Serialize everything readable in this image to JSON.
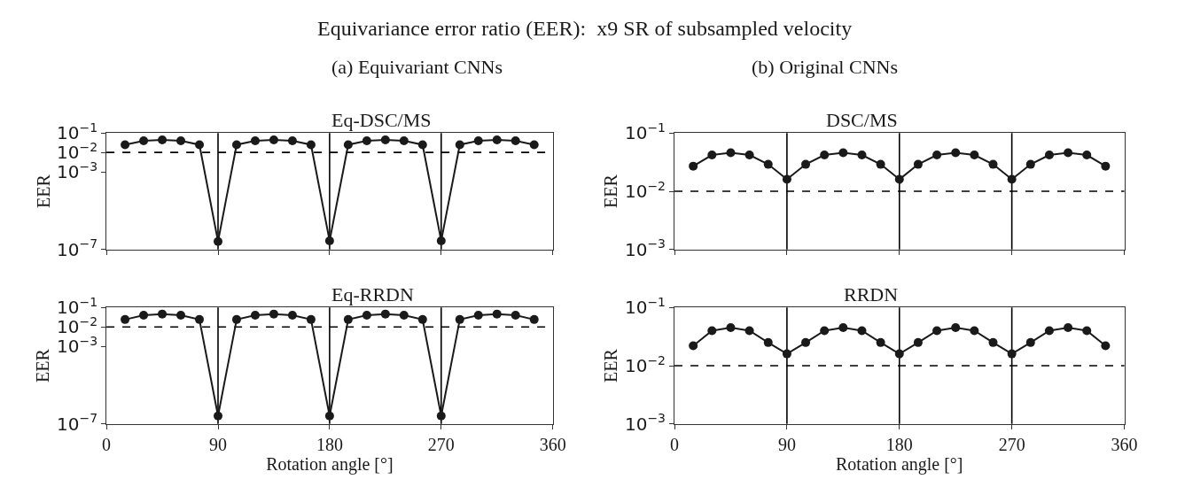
{
  "chart_data": [
    {
      "type": "line",
      "subtitle": "(a) Equivariant CNNs",
      "title": "Eq-DSC/MS",
      "ylabel": "EER",
      "annotations": [
        "Equivariance error ratio (EER):  x9 SR of subsampled velocity"
      ],
      "log": "y",
      "xlim": [
        0,
        360
      ],
      "xticks": [
        0,
        90,
        180,
        270,
        360
      ],
      "ylim": [
        1e-07,
        0.1
      ],
      "yticks": [
        {
          "value": 0.1,
          "label": "10$^{−1}$"
        },
        {
          "value": 0.01,
          "label": "10$^{−2}$"
        },
        {
          "value": 0.001,
          "label": "10$^{−3}$"
        },
        {
          "value": 1e-07,
          "label": "10$^{−7}$"
        }
      ],
      "tick_labels": "y",
      "marker": "circle",
      "line_style": "solid",
      "ref_lines": [
        {
          "axis": "x",
          "value": 90,
          "color": "#000000",
          "line_style": "solid"
        },
        {
          "axis": "x",
          "value": 180,
          "color": "#000000",
          "line_style": "solid"
        },
        {
          "axis": "x",
          "value": 270,
          "color": "#000000",
          "line_style": "solid"
        },
        {
          "axis": "y",
          "value": 0.01,
          "color": "#000000",
          "line_style": "dashed"
        }
      ],
      "x": [
        15,
        30,
        45,
        60,
        75,
        90,
        105,
        120,
        135,
        150,
        165,
        180,
        195,
        210,
        225,
        240,
        255,
        270,
        285,
        300,
        315,
        330,
        345
      ],
      "series": [
        {
          "color": "#1a1a1a",
          "values": [
            0.025,
            0.04,
            0.044,
            0.04,
            0.025,
            2.6e-07,
            0.025,
            0.04,
            0.044,
            0.04,
            0.025,
            2.8e-07,
            0.025,
            0.04,
            0.044,
            0.04,
            0.025,
            2.8e-07,
            0.025,
            0.04,
            0.044,
            0.04,
            0.025
          ]
        }
      ]
    },
    {
      "type": "line",
      "subtitle": "(b) Original CNNs",
      "title": "DSC/MS",
      "ylabel": "EER",
      "log": "y",
      "xlim": [
        0,
        360
      ],
      "xticks": [
        0,
        90,
        180,
        270,
        360
      ],
      "ylim": [
        0.001,
        0.1
      ],
      "yticks": [
        {
          "value": 0.1,
          "label": "10$^{−1}$"
        },
        {
          "value": 0.01,
          "label": "10$^{−2}$"
        },
        {
          "value": 0.001,
          "label": "10$^{−3}$"
        }
      ],
      "tick_labels": "y",
      "marker": "circle",
      "line_style": "solid",
      "ref_lines": [
        {
          "axis": "x",
          "value": 90,
          "color": "#000000",
          "line_style": "solid"
        },
        {
          "axis": "x",
          "value": 180,
          "color": "#000000",
          "line_style": "solid"
        },
        {
          "axis": "x",
          "value": 270,
          "color": "#000000",
          "line_style": "solid"
        },
        {
          "axis": "y",
          "value": 0.01,
          "color": "#000000",
          "line_style": "dashed"
        }
      ],
      "x": [
        15,
        30,
        45,
        60,
        75,
        90,
        105,
        120,
        135,
        150,
        165,
        180,
        195,
        210,
        225,
        240,
        255,
        270,
        285,
        300,
        315,
        330,
        345
      ],
      "series": [
        {
          "color": "#1a1a1a",
          "values": [
            0.027,
            0.042,
            0.046,
            0.042,
            0.029,
            0.016,
            0.029,
            0.042,
            0.046,
            0.042,
            0.029,
            0.016,
            0.029,
            0.042,
            0.046,
            0.042,
            0.029,
            0.016,
            0.029,
            0.042,
            0.046,
            0.042,
            0.027
          ]
        }
      ]
    },
    {
      "type": "line",
      "title": "Eq-RRDN",
      "xlabel": "Rotation angle [°]",
      "ylabel": "EER",
      "log": "y",
      "xlim": [
        0,
        360
      ],
      "xticks": [
        0,
        90,
        180,
        270,
        360
      ],
      "ylim": [
        1e-07,
        0.1
      ],
      "yticks": [
        {
          "value": 0.1,
          "label": "10$^{−1}$"
        },
        {
          "value": 0.01,
          "label": "10$^{−2}$"
        },
        {
          "value": 0.001,
          "label": "10$^{−3}$"
        },
        {
          "value": 1e-07,
          "label": "10$^{−7}$"
        }
      ],
      "marker": "circle",
      "line_style": "solid",
      "ref_lines": [
        {
          "axis": "x",
          "value": 90,
          "color": "#000000",
          "line_style": "solid"
        },
        {
          "axis": "x",
          "value": 180,
          "color": "#000000",
          "line_style": "solid"
        },
        {
          "axis": "x",
          "value": 270,
          "color": "#000000",
          "line_style": "solid"
        },
        {
          "axis": "y",
          "value": 0.01,
          "color": "#000000",
          "line_style": "dashed"
        }
      ],
      "x": [
        15,
        30,
        45,
        60,
        75,
        90,
        105,
        120,
        135,
        150,
        165,
        180,
        195,
        210,
        225,
        240,
        255,
        270,
        285,
        300,
        315,
        330,
        345
      ],
      "series": [
        {
          "color": "#1a1a1a",
          "values": [
            0.024,
            0.04,
            0.046,
            0.04,
            0.024,
            2.6e-07,
            0.024,
            0.04,
            0.046,
            0.04,
            0.024,
            2.6e-07,
            0.024,
            0.04,
            0.046,
            0.04,
            0.024,
            2.6e-07,
            0.024,
            0.04,
            0.046,
            0.04,
            0.024
          ]
        }
      ]
    },
    {
      "type": "line",
      "title": "RRDN",
      "xlabel": "Rotation angle [°]",
      "ylabel": "EER",
      "log": "y",
      "xlim": [
        0,
        360
      ],
      "xticks": [
        0,
        90,
        180,
        270,
        360
      ],
      "ylim": [
        0.001,
        0.1
      ],
      "yticks": [
        {
          "value": 0.1,
          "label": "10$^{−1}$"
        },
        {
          "value": 0.01,
          "label": "10$^{−2}$"
        },
        {
          "value": 0.001,
          "label": "10$^{−3}$"
        }
      ],
      "marker": "circle",
      "line_style": "solid",
      "ref_lines": [
        {
          "axis": "x",
          "value": 90,
          "color": "#000000",
          "line_style": "solid"
        },
        {
          "axis": "x",
          "value": 180,
          "color": "#000000",
          "line_style": "solid"
        },
        {
          "axis": "x",
          "value": 270,
          "color": "#000000",
          "line_style": "solid"
        },
        {
          "axis": "y",
          "value": 0.01,
          "color": "#000000",
          "line_style": "dashed"
        }
      ],
      "x": [
        15,
        30,
        45,
        60,
        75,
        90,
        105,
        120,
        135,
        150,
        165,
        180,
        195,
        210,
        225,
        240,
        255,
        270,
        285,
        300,
        315,
        330,
        345
      ],
      "series": [
        {
          "color": "#1a1a1a",
          "values": [
            0.022,
            0.04,
            0.045,
            0.04,
            0.025,
            0.016,
            0.025,
            0.04,
            0.045,
            0.04,
            0.025,
            0.016,
            0.025,
            0.04,
            0.045,
            0.04,
            0.025,
            0.016,
            0.025,
            0.04,
            0.045,
            0.04,
            0.022
          ]
        }
      ]
    }
  ]
}
